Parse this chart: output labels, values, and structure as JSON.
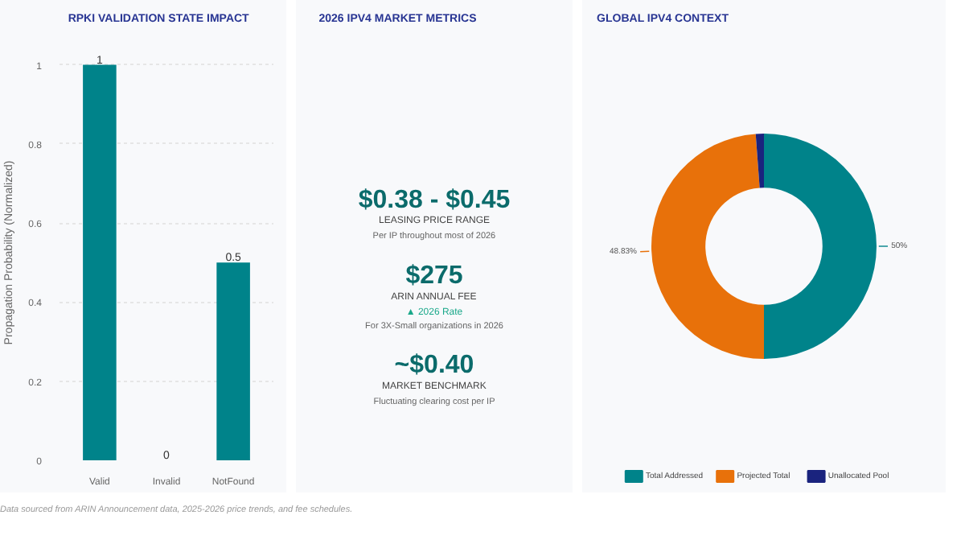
{
  "chart_data": [
    {
      "type": "bar",
      "title": "RPKI VALIDATION STATE IMPACT",
      "ylabel": "Propagation Probability (Normalized)",
      "categories": [
        "Valid",
        "Invalid",
        "NotFound"
      ],
      "values": [
        1,
        0,
        0.5
      ],
      "color": "#00838a",
      "ylim": [
        0,
        1.05
      ],
      "yticks": [
        0,
        0.2,
        0.4,
        0.6,
        0.8,
        1
      ],
      "grid": "y",
      "data_labels": true,
      "legend": false,
      "annotations": [
        "Data sourced from ARIN Announcement data, 2025-2026 price trends, and fee schedules."
      ]
    },
    {
      "type": "other",
      "title": "2026 IPV4 MARKET METRICS",
      "annotations": [
        "$0.38 - $0.45",
        "LEASING PRICE RANGE",
        "Per IP throughout most of 2026",
        "$275",
        "ARIN ANNUAL FEE",
        "▲ 2026 Rate",
        "For 3X-Small organizations in 2026",
        "~$0.40",
        "MARKET BENCHMARK",
        "Fluctuating clearing cost per IP"
      ]
    },
    {
      "type": "donut",
      "title": "GLOBAL IPV4 CONTEXT",
      "categories": [
        "Total Addressed",
        "Projected Total",
        "Unallocated Pool"
      ],
      "values": [
        50,
        48.83,
        1.17
      ],
      "colors": [
        "#00838a",
        "#e8710a",
        "#1a237e"
      ],
      "value_labels": [
        "50%",
        "48.83%",
        null
      ],
      "legend": "bottom"
    }
  ]
}
